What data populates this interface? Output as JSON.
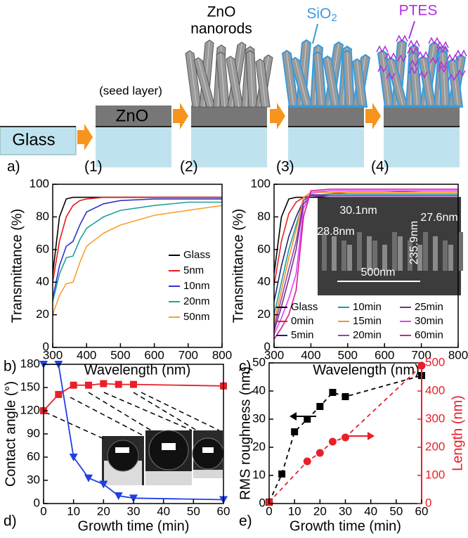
{
  "schematic": {
    "panel_label": "a)",
    "glass": "Glass",
    "seed_layer": "(seed layer)",
    "zno": "ZnO",
    "nanorods_title": [
      "ZnO",
      "nanorods"
    ],
    "sio2": {
      "base": "SiO",
      "sub": "2"
    },
    "ptes": "PTES",
    "steps": [
      "(1)",
      "(2)",
      "(3)",
      "(4)"
    ]
  },
  "chart_data": [
    {
      "type": "line",
      "panel_label": "b)",
      "xlabel": "Wavelength (nm)",
      "ylabel": "Transmittance (%)",
      "xlim": [
        300,
        800
      ],
      "ylim": [
        0,
        100
      ],
      "xticks": [
        300,
        400,
        500,
        600,
        700,
        800
      ],
      "yticks": [
        0,
        20,
        40,
        60,
        80,
        100
      ],
      "x": [
        300,
        320,
        340,
        360,
        380,
        400,
        450,
        500,
        600,
        700,
        800
      ],
      "series": [
        {
          "name": "Glass",
          "color": "#000000",
          "values": [
            45,
            80,
            91,
            92,
            92,
            92,
            92,
            92,
            92,
            92,
            92
          ]
        },
        {
          "name": "5nm",
          "color": "#e41a1c",
          "values": [
            40,
            65,
            80,
            87,
            90,
            91,
            92,
            92,
            92,
            92,
            92
          ]
        },
        {
          "name": "10nm",
          "color": "#3333cc",
          "values": [
            30,
            50,
            62,
            65,
            75,
            83,
            88,
            90,
            91,
            91,
            91
          ]
        },
        {
          "name": "20nm",
          "color": "#20a0a0",
          "values": [
            28,
            45,
            55,
            56,
            66,
            73,
            80,
            84,
            87,
            89,
            89
          ]
        },
        {
          "name": "50nm",
          "color": "#f7a030",
          "values": [
            20,
            32,
            39,
            40,
            52,
            62,
            70,
            75,
            81,
            84,
            87
          ]
        }
      ]
    },
    {
      "type": "line",
      "panel_label": "c)",
      "xlabel": "Wavelength (nm)",
      "ylabel": "Transmittance (%)",
      "xlim": [
        300,
        800
      ],
      "ylim": [
        0,
        100
      ],
      "xticks": [
        300,
        400,
        500,
        600,
        700,
        800
      ],
      "yticks": [
        0,
        20,
        40,
        60,
        80,
        100
      ],
      "annotations": [
        "30.1nm",
        "28.8nm",
        "235.9nm",
        "27.6nm",
        "500nm"
      ],
      "x": [
        300,
        320,
        340,
        360,
        380,
        400,
        450,
        500,
        600,
        700,
        800
      ],
      "series": [
        {
          "name": "Glass",
          "color": "#000000",
          "values": [
            45,
            80,
            91,
            92,
            92,
            92,
            92,
            92,
            92,
            92,
            92
          ]
        },
        {
          "name": "0min",
          "color": "#e8202a",
          "values": [
            38,
            65,
            82,
            89,
            92,
            93,
            94,
            95,
            95,
            96,
            96
          ]
        },
        {
          "name": "5min",
          "color": "#1a237e",
          "values": [
            28,
            50,
            68,
            80,
            90,
            93,
            93,
            93,
            93,
            93,
            93
          ]
        },
        {
          "name": "10min",
          "color": "#1a9e9e",
          "values": [
            20,
            40,
            60,
            75,
            90,
            93,
            94,
            94,
            94,
            94,
            94
          ]
        },
        {
          "name": "15min",
          "color": "#f7941d",
          "values": [
            15,
            35,
            55,
            72,
            92,
            95,
            95,
            95,
            95,
            95,
            95
          ]
        },
        {
          "name": "20min",
          "color": "#8e44ad",
          "values": [
            12,
            30,
            48,
            65,
            90,
            94,
            93,
            93,
            93,
            93,
            93
          ]
        },
        {
          "name": "25min",
          "color": "#7b2d8e",
          "values": [
            10,
            25,
            42,
            60,
            88,
            93,
            92,
            92,
            92,
            92,
            92
          ]
        },
        {
          "name": "30min",
          "color": "#e040fb",
          "values": [
            8,
            18,
            30,
            45,
            85,
            95,
            96,
            96,
            96,
            96,
            96
          ]
        },
        {
          "name": "60min",
          "color": "#d81b8c",
          "values": [
            5,
            12,
            20,
            35,
            80,
            96,
            97,
            97,
            97,
            97,
            97
          ]
        }
      ]
    },
    {
      "type": "line",
      "panel_label": "d)",
      "xlabel": "Growth time (min)",
      "ylabel": "Contact angle (°)",
      "xlim": [
        0,
        60
      ],
      "ylim": [
        0,
        180
      ],
      "xticks": [
        0,
        10,
        20,
        30,
        40,
        50,
        60
      ],
      "yticks": [
        0,
        30,
        60,
        90,
        120,
        150,
        180
      ],
      "x": [
        0,
        5,
        10,
        15,
        20,
        25,
        30,
        60
      ],
      "series": [
        {
          "color": "#e8202a",
          "marker": "square",
          "line": "solid",
          "values": [
            120,
            141,
            153,
            153,
            155,
            154,
            154,
            152
          ]
        },
        {
          "color": "#2040e0",
          "marker": "triangle-down",
          "line": "solid",
          "values": [
            180,
            180,
            60,
            33,
            25,
            10,
            7,
            5
          ]
        }
      ]
    },
    {
      "type": "scatter",
      "panel_label": "e)",
      "xlabel": "Growth time (min)",
      "ylabel": "RMS roughness (nm)",
      "y2label": "Length (nm)",
      "xlim": [
        0,
        60
      ],
      "ylim": [
        0,
        50
      ],
      "y2lim": [
        0,
        500
      ],
      "xticks": [
        0,
        10,
        20,
        30,
        40,
        50,
        60
      ],
      "yticks": [
        0,
        10,
        20,
        30,
        40,
        50
      ],
      "y2ticks": [
        0,
        100,
        200,
        300,
        400,
        500
      ],
      "y2color": "#e8202a",
      "series": [
        {
          "color": "#000000",
          "marker": "square",
          "line": "dashed",
          "x": [
            0,
            5,
            10,
            15,
            20,
            25,
            30,
            60
          ],
          "values": [
            0.5,
            10.5,
            25.5,
            30,
            34.5,
            39.5,
            38,
            45.5
          ]
        },
        {
          "color": "#e8202a",
          "marker": "circle",
          "line": "dashed",
          "axis": "y2",
          "x": [
            0,
            15,
            20,
            25,
            30,
            60
          ],
          "values": [
            5,
            150,
            180,
            220,
            235,
            490
          ]
        }
      ]
    }
  ]
}
